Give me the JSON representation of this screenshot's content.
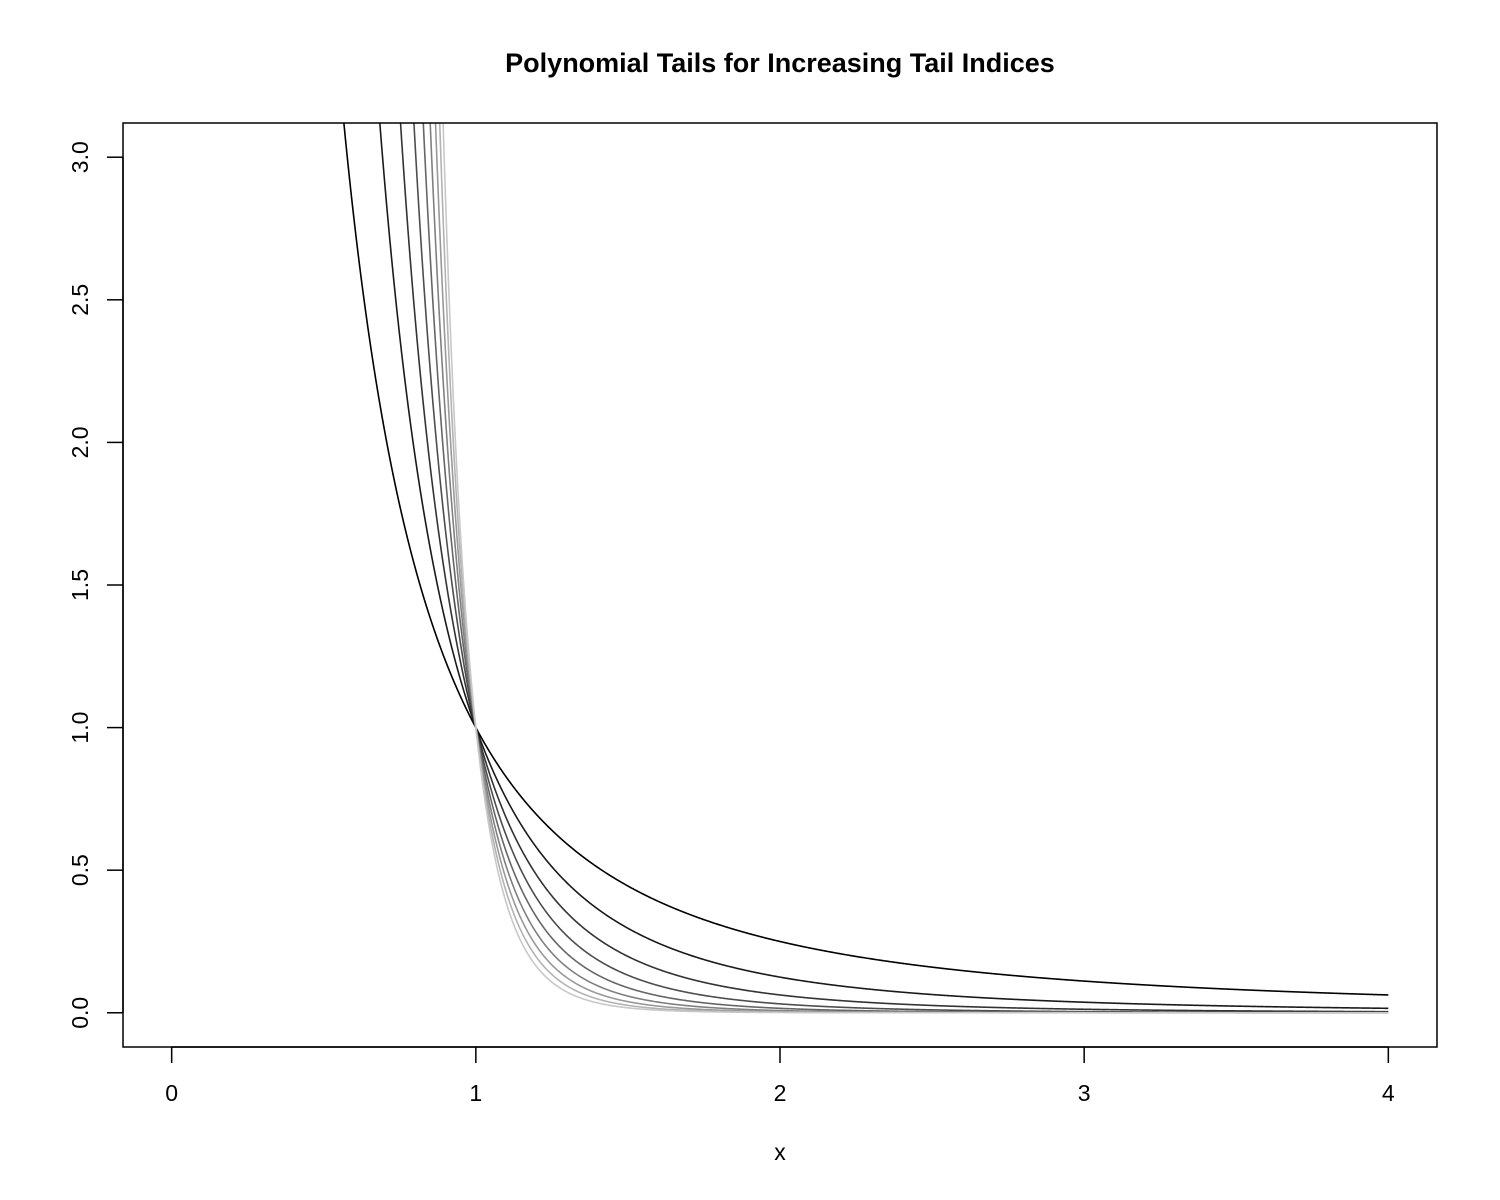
{
  "chart_data": {
    "type": "line",
    "title": "Polynomial Tails for Increasing Tail Indices",
    "xlabel": "x",
    "ylabel": "",
    "xlim": [
      -0.16,
      4.16
    ],
    "ylim": [
      -0.12,
      3.12
    ],
    "x_ticks": [
      0,
      1,
      2,
      3,
      4
    ],
    "x_tick_labels": [
      "0",
      "1",
      "2",
      "3",
      "4"
    ],
    "y_ticks": [
      0.0,
      0.5,
      1.0,
      1.5,
      2.0,
      2.5,
      3.0
    ],
    "y_tick_labels": [
      "0.0",
      "0.5",
      "1.0",
      "1.5",
      "2.0",
      "2.5",
      "3.0"
    ],
    "x_range": [
      0.01,
      4
    ],
    "formula": "y = x^(-alpha)",
    "grid": false,
    "series": [
      {
        "alpha": 2,
        "color": "#000000"
      },
      {
        "alpha": 3,
        "color": "#1a1a1a"
      },
      {
        "alpha": 4,
        "color": "#333333"
      },
      {
        "alpha": 5,
        "color": "#4d4d4d"
      },
      {
        "alpha": 6,
        "color": "#666666"
      },
      {
        "alpha": 7,
        "color": "#808080"
      },
      {
        "alpha": 8,
        "color": "#999999"
      },
      {
        "alpha": 9,
        "color": "#b3b3b3"
      },
      {
        "alpha": 10,
        "color": "#c8c8c8"
      }
    ]
  }
}
